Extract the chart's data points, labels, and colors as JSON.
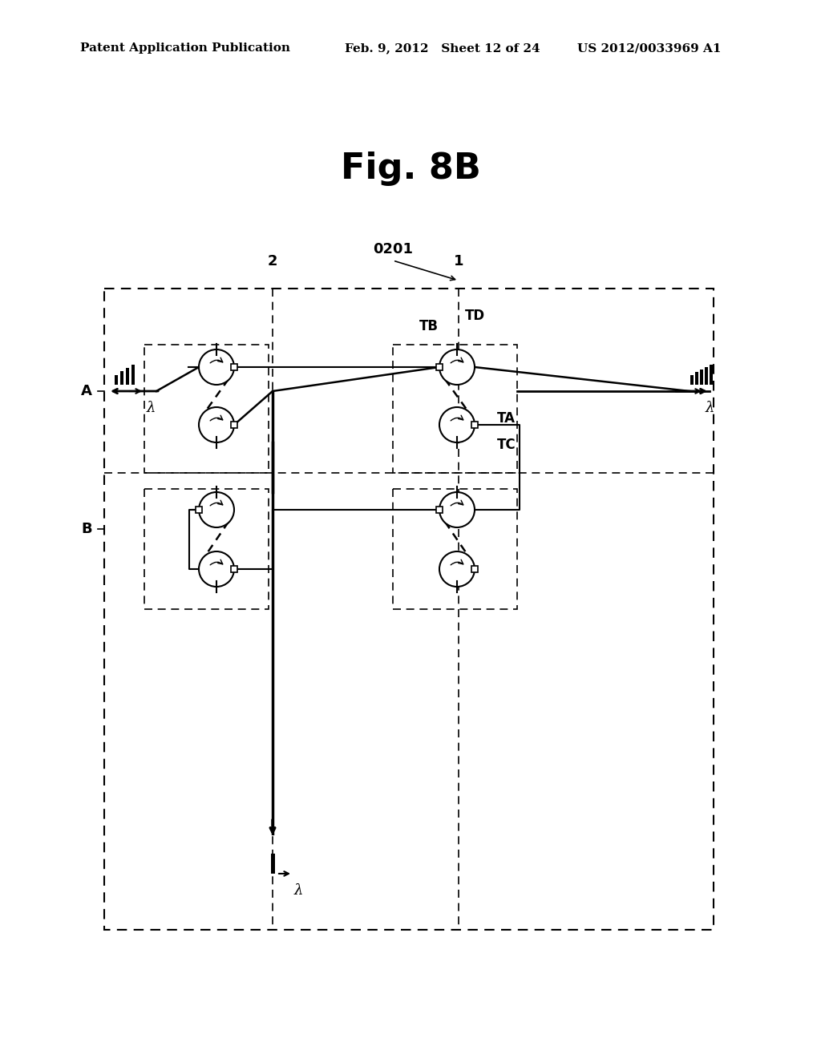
{
  "title": "Fig. 8B",
  "header_left": "Patent Application Publication",
  "header_mid": "Feb. 9, 2012   Sheet 12 of 24",
  "header_right": "US 2012/0033969 A1",
  "bg_color": "#ffffff",
  "label_2": "2",
  "label_1": "1",
  "label_0201": "0201",
  "label_A": "A",
  "label_B": "B",
  "label_TB": "TB",
  "label_TD": "TD",
  "label_TA": "TA",
  "label_TC": "TC",
  "lambda_char": "λ"
}
